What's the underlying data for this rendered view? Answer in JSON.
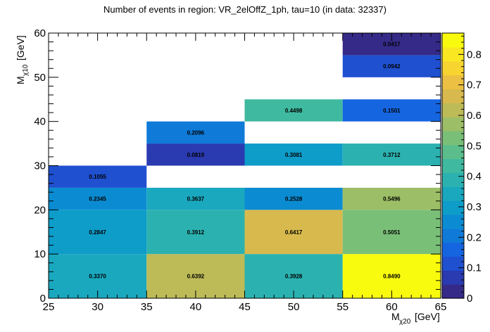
{
  "chart_data": {
    "type": "heatmap",
    "title": "Number of events in region: VR_2elOffZ_1ph, tau=10 (in data: 32337)",
    "xlabel_main": "M",
    "xlabel_sub": "χ20",
    "xlabel_unit": "[GeV]",
    "ylabel_main": "M",
    "ylabel_sub": "χ10",
    "ylabel_unit": "[GeV]",
    "xlim": [
      25,
      65
    ],
    "ylim": [
      0,
      60
    ],
    "zlim": [
      0,
      0.87
    ],
    "x_edges": [
      25,
      35,
      45,
      55,
      65
    ],
    "y_edges": [
      0,
      5,
      10,
      15,
      20,
      25,
      30,
      35,
      40,
      45,
      50,
      55,
      60
    ],
    "x_ticks": [
      "25",
      "30",
      "35",
      "40",
      "45",
      "50",
      "55",
      "60",
      "65"
    ],
    "y_ticks": [
      "0",
      "10",
      "20",
      "30",
      "40",
      "50",
      "60"
    ],
    "z_ticks": [
      "0",
      "0.1",
      "0.2",
      "0.3",
      "0.4",
      "0.5",
      "0.6",
      "0.7",
      "0.8"
    ],
    "cells": [
      {
        "xi": 0,
        "yi": 0,
        "value": 0.337,
        "label": "0.3370"
      },
      {
        "xi": 1,
        "yi": 0,
        "value": 0.6392,
        "label": "0.6392"
      },
      {
        "xi": 2,
        "yi": 0,
        "value": 0.3928,
        "label": "0.3928"
      },
      {
        "xi": 3,
        "yi": 0,
        "value": 0.849,
        "label": "0.8490"
      },
      {
        "xi": 0,
        "yi": 1,
        "value": 0.2847,
        "label": "0.2847"
      },
      {
        "xi": 1,
        "yi": 1,
        "value": 0.3912,
        "label": "0.3912"
      },
      {
        "xi": 2,
        "yi": 1,
        "value": 0.6417,
        "label": "0.6417"
      },
      {
        "xi": 3,
        "yi": 1,
        "value": 0.5051,
        "label": "0.5051"
      },
      {
        "xi": 0,
        "yi": 2,
        "value": 0.2345,
        "label": "0.2345"
      },
      {
        "xi": 1,
        "yi": 2,
        "value": 0.3637,
        "label": "0.3637"
      },
      {
        "xi": 2,
        "yi": 2,
        "value": 0.2528,
        "label": "0.2528"
      },
      {
        "xi": 3,
        "yi": 2,
        "value": 0.5496,
        "label": "0.5496"
      },
      {
        "xi": 0,
        "yi": 3,
        "value": 0.1055,
        "label": "0.1055"
      },
      {
        "xi": 1,
        "yi": 4,
        "value": 0.0819,
        "label": "0.0819"
      },
      {
        "xi": 2,
        "yi": 4,
        "value": 0.3081,
        "label": "0.3081"
      },
      {
        "xi": 3,
        "yi": 4,
        "value": 0.3712,
        "label": "0.3712"
      },
      {
        "xi": 1,
        "yi": 5,
        "value": 0.2096,
        "label": "0.2096"
      },
      {
        "xi": 2,
        "yi": 6,
        "value": 0.4498,
        "label": "0.4498"
      },
      {
        "xi": 3,
        "yi": 6,
        "value": 0.1501,
        "label": "0.1501"
      },
      {
        "xi": 3,
        "yi": 7,
        "value": 0.0942,
        "label": "0.0942"
      },
      {
        "xi": 3,
        "yi": 8,
        "value": 0.0417,
        "label": "0.0417"
      }
    ],
    "y_bin_centers": [
      5,
      15,
      22.5,
      27.5,
      32.5,
      37.5,
      42.5,
      52.5,
      57.5
    ],
    "y_bin_bounds": [
      [
        0,
        10
      ],
      [
        10,
        20
      ],
      [
        20,
        25
      ],
      [
        25,
        30
      ],
      [
        30,
        35
      ],
      [
        35,
        40
      ],
      [
        40,
        45
      ],
      [
        50,
        55
      ],
      [
        55,
        60
      ]
    ],
    "palette": [
      "#352a87",
      "#2a3ab0",
      "#1f50d0",
      "#1565e0",
      "#0f7ad8",
      "#0b8cd2",
      "#0e9cc9",
      "#1aa8bf",
      "#2bb2b0",
      "#3fb99f",
      "#5abd8b",
      "#7abf78",
      "#9cbe66",
      "#bdbb58",
      "#d7b94d",
      "#ecc042",
      "#f8d431",
      "#f9e722",
      "#f9fb0e"
    ]
  }
}
